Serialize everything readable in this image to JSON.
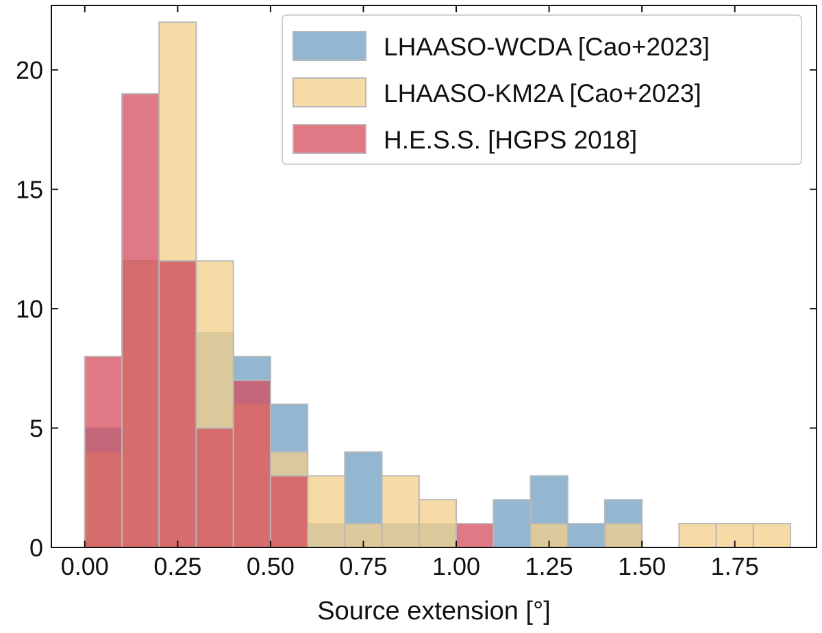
{
  "chart_data": {
    "type": "bar",
    "subtype": "overlaid-histogram",
    "title": "",
    "xlabel": "Source extension [°]",
    "ylabel": "",
    "xlim": [
      -0.09,
      1.97
    ],
    "ylim": [
      0,
      22.7
    ],
    "bin_edges": [
      0.0,
      0.1,
      0.2,
      0.3,
      0.4,
      0.5,
      0.6,
      0.7,
      0.8,
      0.9,
      1.0,
      1.1,
      1.2,
      1.3,
      1.4,
      1.5,
      1.6,
      1.7,
      1.8,
      1.9
    ],
    "x_ticks": [
      "0.00",
      "0.25",
      "0.50",
      "0.75",
      "1.00",
      "1.25",
      "1.50",
      "1.75"
    ],
    "x_tick_values": [
      0.0,
      0.25,
      0.5,
      0.75,
      1.0,
      1.25,
      1.5,
      1.75
    ],
    "y_ticks": [
      "0",
      "5",
      "10",
      "15",
      "20"
    ],
    "y_tick_values": [
      0,
      5,
      10,
      15,
      20
    ],
    "grid": false,
    "legend_position": "top-right",
    "series": [
      {
        "name": "LHAASO-WCDA [Cao+2023]",
        "color": "#6f9fc2",
        "values": [
          5,
          12,
          12,
          9,
          8,
          6,
          1,
          4,
          1,
          1,
          0,
          2,
          3,
          1,
          2,
          0,
          0,
          0,
          0
        ]
      },
      {
        "name": "LHAASO-KM2A [Cao+2023]",
        "color": "#f3cf88",
        "values": [
          4,
          12,
          22,
          12,
          6,
          4,
          3,
          1,
          3,
          2,
          0,
          0,
          1,
          0,
          1,
          0,
          1,
          1,
          1
        ]
      },
      {
        "name": "H.E.S.S. [HGPS 2018]",
        "color": "#d44c5c",
        "values": [
          8,
          19,
          12,
          5,
          7,
          3,
          0,
          0,
          0,
          0,
          1,
          0,
          0,
          0,
          0,
          0,
          0,
          0,
          0
        ]
      }
    ]
  }
}
